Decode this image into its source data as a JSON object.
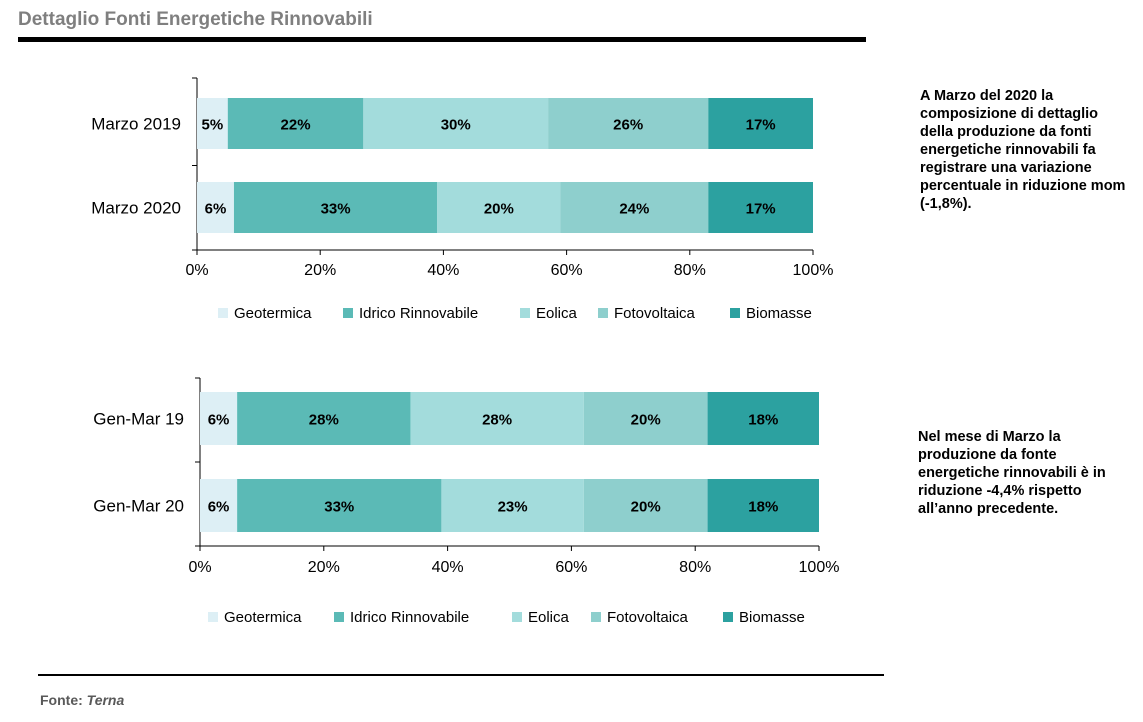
{
  "title": "Dettaglio Fonti Energetiche Rinnovabili",
  "notes": {
    "note1": "A Marzo del 2020  la composizione di dettaglio della produzione da  fonti energetiche rinnovabili fa registrare una variazione percentuale in riduzione mom (-1,8%).",
    "note2": "Nel mese di Marzo la produzione da fonte energetiche rinnovabili è in riduzione -4,4% rispetto all’anno precedente."
  },
  "source": {
    "label": "Fonte:",
    "value": "Terna"
  },
  "colors": {
    "Geotermica": "#ddeff5",
    "Idrico Rinnovabile": "#5bbab6",
    "Eolica": "#a3dcdc",
    "Fotovoltaica": "#8ecfcd",
    "Biomasse": "#2ca1a0"
  },
  "chart_data": [
    {
      "type": "bar",
      "orientation": "horizontal",
      "stacked": "percent",
      "categories": [
        "Marzo 2019",
        "Marzo 2020"
      ],
      "series": [
        {
          "name": "Geotermica",
          "values": [
            5,
            6
          ],
          "labels": [
            "5%",
            "6%"
          ]
        },
        {
          "name": "Idrico Rinnovabile",
          "values": [
            22,
            33
          ],
          "labels": [
            "22%",
            "33%"
          ]
        },
        {
          "name": "Eolica",
          "values": [
            30,
            20
          ],
          "labels": [
            "30%",
            "20%"
          ]
        },
        {
          "name": "Fotovoltaica",
          "values": [
            26,
            24
          ],
          "labels": [
            "26%",
            "24%"
          ]
        },
        {
          "name": "Biomasse",
          "values": [
            17,
            17
          ],
          "labels": [
            "17%",
            "17%"
          ]
        }
      ],
      "xticks": [
        "0%",
        "20%",
        "40%",
        "60%",
        "80%",
        "100%"
      ],
      "xlim": [
        0,
        100
      ],
      "grid": false,
      "legend": "bottom"
    },
    {
      "type": "bar",
      "orientation": "horizontal",
      "stacked": "percent",
      "categories": [
        "Gen-Mar 19",
        "Gen-Mar 20"
      ],
      "series": [
        {
          "name": "Geotermica",
          "values": [
            6,
            6
          ],
          "labels": [
            "6%",
            "6%"
          ]
        },
        {
          "name": "Idrico Rinnovabile",
          "values": [
            28,
            33
          ],
          "labels": [
            "28%",
            "33%"
          ]
        },
        {
          "name": "Eolica",
          "values": [
            28,
            23
          ],
          "labels": [
            "28%",
            "23%"
          ]
        },
        {
          "name": "Fotovoltaica",
          "values": [
            20,
            20
          ],
          "labels": [
            "20%",
            "20%"
          ]
        },
        {
          "name": "Biomasse",
          "values": [
            18,
            18
          ],
          "labels": [
            "18%",
            "18%"
          ]
        }
      ],
      "xticks": [
        "0%",
        "20%",
        "40%",
        "60%",
        "80%",
        "100%"
      ],
      "xlim": [
        0,
        100
      ],
      "grid": false,
      "legend": "bottom"
    }
  ]
}
